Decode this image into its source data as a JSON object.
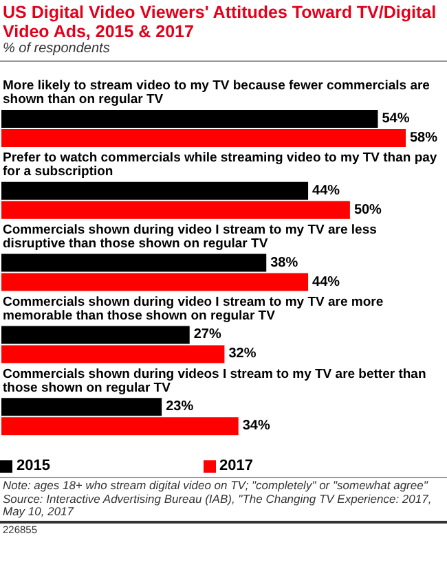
{
  "chart_data": {
    "type": "bar",
    "orientation": "horizontal",
    "title": "US Digital Video Viewers' Attitudes Toward TV/Digital Video Ads, 2015 & 2017",
    "subtitle": "% of respondents",
    "categories": [
      "More likely to stream video to my TV because fewer commercials are shown than on regular TV",
      "Prefer to watch commercials while streaming video to my TV than pay for a subscription",
      "Commercials shown during video I stream to my TV are less disruptive than those shown on regular TV",
      "Commercials shown during video I stream to my TV are more memorable than those shown on regular TV",
      "Commercials shown during videos I stream to my TV are better than those shown on regular TV"
    ],
    "series": [
      {
        "name": "2015",
        "color": "#000000",
        "values": [
          54,
          44,
          38,
          27,
          23
        ],
        "value_labels": [
          "54%",
          "44%",
          "38%",
          "27%",
          "23%"
        ]
      },
      {
        "name": "2017",
        "color": "#ff0000",
        "values": [
          58,
          50,
          44,
          32,
          34
        ],
        "value_labels": [
          "58%",
          "50%",
          "44%",
          "32%",
          "34%"
        ]
      }
    ],
    "legend": "bottom",
    "grid": false,
    "annotations": [
      "Note: ages 18+ who stream digital video on TV; \"completely\" or \"somewhat agree\"",
      "Source: Interactive Advertising Bureau (IAB), \"The Changing TV Experience: 2017, May 10, 2017",
      "226855"
    ]
  }
}
